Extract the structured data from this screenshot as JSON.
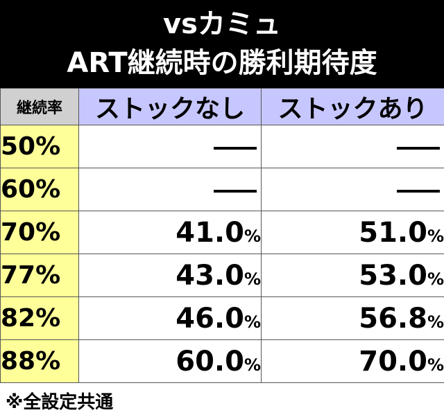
{
  "header": {
    "line1": "vsカミュ",
    "line2": "ART継続時の勝利期待度"
  },
  "table": {
    "columns": [
      "継続率",
      "ストックなし",
      "ストックあり"
    ],
    "rows": [
      {
        "rate": "50%",
        "no_stock": "",
        "no_stock_pct": "",
        "with_stock": "",
        "with_stock_pct": "",
        "dash": true
      },
      {
        "rate": "60%",
        "no_stock": "",
        "no_stock_pct": "",
        "with_stock": "",
        "with_stock_pct": "",
        "dash": true
      },
      {
        "rate": "70%",
        "no_stock": "41.0",
        "no_stock_pct": "%",
        "with_stock": "51.0",
        "with_stock_pct": "%",
        "dash": false
      },
      {
        "rate": "77%",
        "no_stock": "43.0",
        "no_stock_pct": "%",
        "with_stock": "53.0",
        "with_stock_pct": "%",
        "dash": false
      },
      {
        "rate": "82%",
        "no_stock": "46.0",
        "no_stock_pct": "%",
        "with_stock": "56.8",
        "with_stock_pct": "%",
        "dash": false
      },
      {
        "rate": "88%",
        "no_stock": "60.0",
        "no_stock_pct": "%",
        "with_stock": "70.0",
        "with_stock_pct": "%",
        "dash": false
      }
    ]
  },
  "footer": {
    "note": "※全設定共通"
  },
  "colors": {
    "header_bg": "#000000",
    "column_header_bg": "#c7c7ff",
    "corner_bg": "#d0d0d0",
    "rate_bg": "#ffff99"
  }
}
